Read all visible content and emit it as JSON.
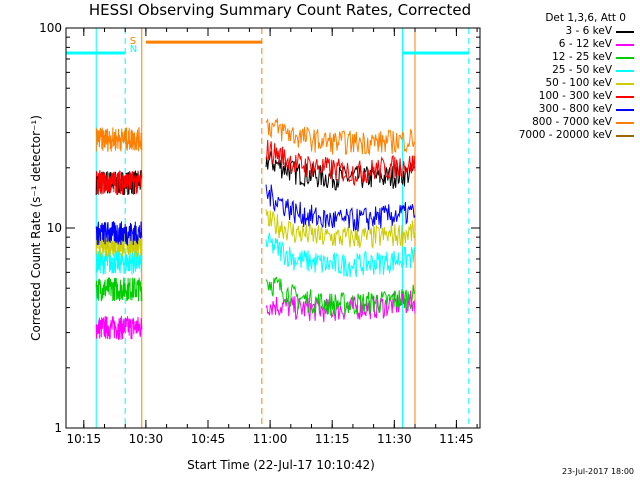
{
  "chart_data": {
    "type": "line",
    "title": "HESSI Observing Summary Count Rates, Corrected",
    "xlabel": "Start Time (22-Jul-17 10:10:42)",
    "ylabel": "Corrected Count Rate (s⁻¹ detector⁻¹)",
    "x_ticks": [
      "10:15",
      "10:30",
      "10:45",
      "11:00",
      "11:15",
      "11:30",
      "11:45"
    ],
    "y_ticks": [
      "1",
      "10",
      "100"
    ],
    "xlim": [
      "10:10:42",
      "11:50:42"
    ],
    "ylim": [
      1,
      100
    ],
    "y_scale": "log",
    "legend_title": "Det 1,3,6, Att 0",
    "series": [
      {
        "name": "3 - 6 keV",
        "color": "#000000",
        "segments": [
          {
            "x": [
              "10:18",
              "10:29"
            ],
            "level": 17
          },
          {
            "x": [
              "10:59",
              "11:35"
            ],
            "level": [
              22,
              19,
              18,
              18,
              18,
              19
            ]
          }
        ]
      },
      {
        "name": "6 - 12 keV",
        "color": "#ff00ff",
        "segments": [
          {
            "x": [
              "10:18",
              "10:29"
            ],
            "level": 3.2
          },
          {
            "x": [
              "10:59",
              "11:35"
            ],
            "level": [
              4.2,
              4.0,
              3.9,
              4.0,
              4.1,
              4.3
            ]
          }
        ]
      },
      {
        "name": "12 - 25 keV",
        "color": "#00cc00",
        "segments": [
          {
            "x": [
              "10:18",
              "10:29"
            ],
            "level": 5.0
          },
          {
            "x": [
              "10:59",
              "11:35"
            ],
            "level": [
              5.5,
              4.5,
              4.2,
              4.2,
              4.3,
              4.6
            ]
          }
        ]
      },
      {
        "name": "25 - 50 keV",
        "color": "#00ffff",
        "segments": [
          {
            "x": [
              "10:18",
              "10:29"
            ],
            "level": 6.8
          },
          {
            "x": [
              "10:59",
              "11:35"
            ],
            "level": [
              8.5,
              7.0,
              6.6,
              6.6,
              6.8,
              7.2
            ]
          }
        ]
      },
      {
        "name": "50 - 100 keV",
        "color": "#cccc00",
        "segments": [
          {
            "x": [
              "10:18",
              "10:29"
            ],
            "level": 8.3
          },
          {
            "x": [
              "10:59",
              "11:35"
            ],
            "level": [
              11,
              9.5,
              9.0,
              9.0,
              9.1,
              9.6
            ]
          }
        ]
      },
      {
        "name": "100 - 300 keV",
        "color": "#ff0000",
        "segments": [
          {
            "x": [
              "10:18",
              "10:29"
            ],
            "level": 17
          },
          {
            "x": [
              "10:59",
              "11:35"
            ],
            "level": [
              25,
              21,
              20,
              19,
              20,
              21
            ]
          }
        ]
      },
      {
        "name": "300 - 800 keV",
        "color": "#0000ff",
        "segments": [
          {
            "x": [
              "10:18",
              "10:29"
            ],
            "level": 9.5
          },
          {
            "x": [
              "10:59",
              "11:35"
            ],
            "level": [
              15,
              12,
              11,
              11,
              11.5,
              12
            ]
          }
        ]
      },
      {
        "name": "800 - 7000 keV",
        "color": "#ff8000",
        "segments": [
          {
            "x": [
              "10:18",
              "10:29"
            ],
            "level": 28
          },
          {
            "x": [
              "10:59",
              "11:35"
            ],
            "level": [
              33,
              29,
              27,
              27,
              27,
              28
            ]
          }
        ]
      },
      {
        "name": "7000 - 20000 keV",
        "color": "#996600",
        "segments": []
      }
    ],
    "bars": [
      {
        "label": "",
        "color": "#00ffff",
        "x": [
          "10:10:42",
          "10:25"
        ],
        "y": 75
      },
      {
        "label": "",
        "color": "#ff8000",
        "x": [
          "10:30",
          "10:58"
        ],
        "y": 85
      },
      {
        "label": "",
        "color": "#00ffff",
        "x": [
          "11:32",
          "11:48"
        ],
        "y": 75
      }
    ],
    "markers": [
      {
        "label": "S",
        "color": "#ff8000",
        "x": "10:29"
      },
      {
        "label": "N",
        "color": "#00ffff",
        "x": "10:29"
      }
    ],
    "vlines": [
      {
        "color": "#00ffff",
        "style": "solid",
        "x": "10:18"
      },
      {
        "color": "#00ffff",
        "style": "dashed",
        "x": "10:25"
      },
      {
        "color": "#ff8000",
        "style": "solid",
        "x": "10:29"
      },
      {
        "color": "#ff8000",
        "style": "dashed",
        "x": "10:58"
      },
      {
        "color": "#00ffff",
        "style": "solid",
        "x": "11:32"
      },
      {
        "color": "#ff8000",
        "style": "solid",
        "x": "11:35"
      },
      {
        "color": "#00ffff",
        "style": "dashed",
        "x": "11:48"
      }
    ],
    "grid": false,
    "legend_position": "top-right"
  },
  "footer": {
    "timestamp": "23-Jul-2017 18:00"
  }
}
